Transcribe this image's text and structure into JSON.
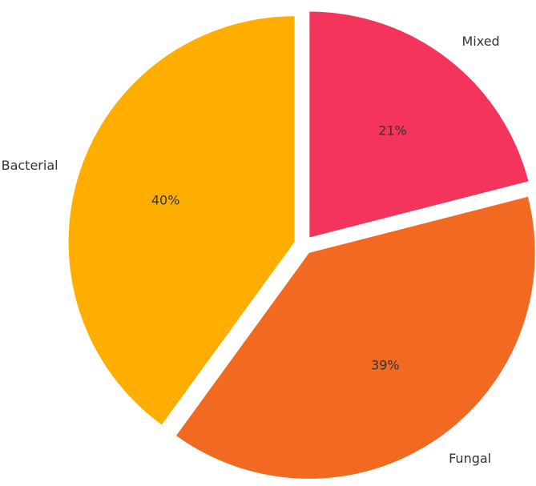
{
  "chart_data": {
    "type": "pie",
    "slices": [
      {
        "label": "Mixed",
        "value": 21,
        "percent_label": "21%",
        "color": "#F5345B",
        "exploded": true
      },
      {
        "label": "Fungal",
        "value": 39,
        "percent_label": "39%",
        "color": "#F26A21",
        "exploded": true
      },
      {
        "label": "Bacterial",
        "value": 40,
        "percent_label": "40%",
        "color": "#FFAE00",
        "exploded": true
      }
    ],
    "start_angle_deg": 90,
    "direction": "clockwise",
    "legend": "none"
  }
}
